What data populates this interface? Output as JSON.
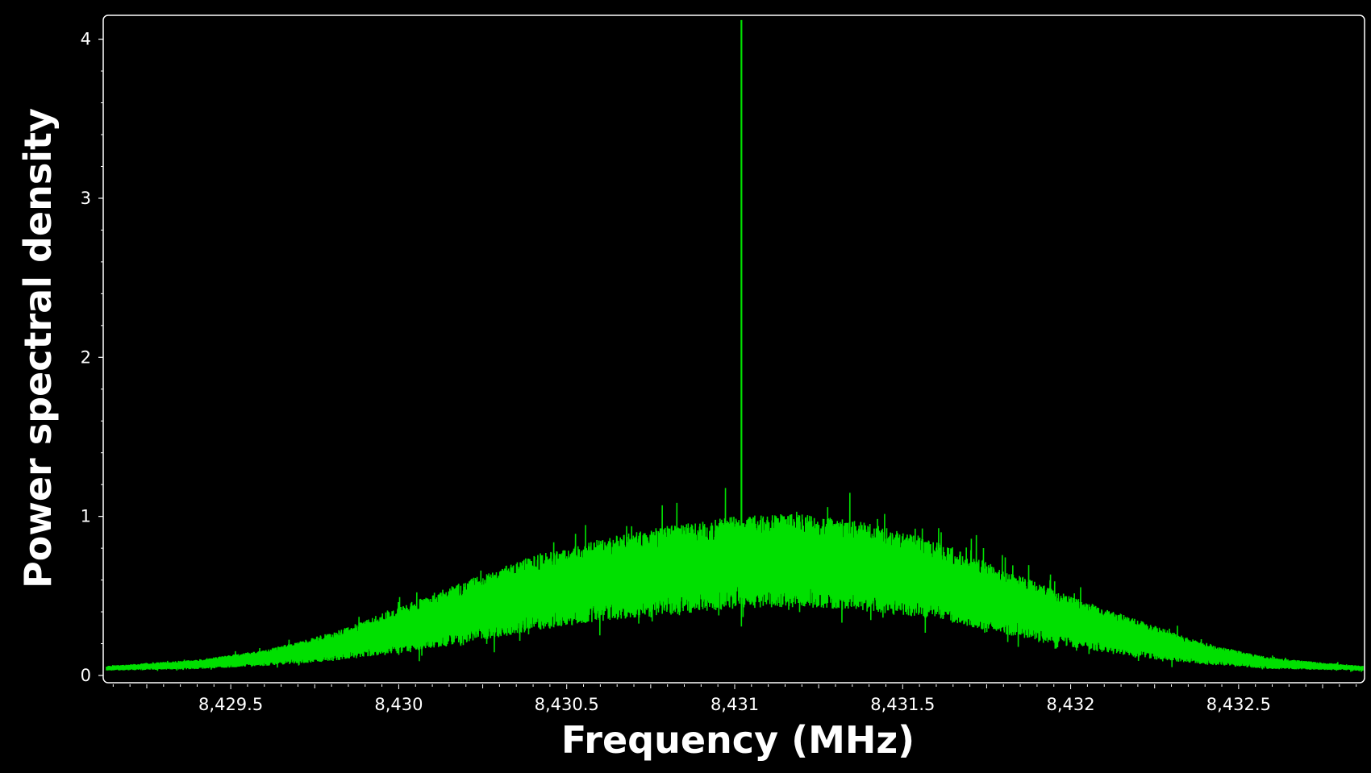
{
  "chart_data": {
    "type": "line",
    "title": "",
    "xlabel": "Frequency (MHz)",
    "ylabel": "Power spectral density",
    "xlim": [
      8429.13,
      8432.87
    ],
    "ylim": [
      0,
      4.15
    ],
    "x_ticks": [
      {
        "value": 8429.5,
        "label": "8,429.5"
      },
      {
        "value": 8430,
        "label": "8,430"
      },
      {
        "value": 8430.5,
        "label": "8,430.5"
      },
      {
        "value": 8431,
        "label": "8,431"
      },
      {
        "value": 8431.5,
        "label": "8,431.5"
      },
      {
        "value": 8432,
        "label": "8,432"
      },
      {
        "value": 8432.5,
        "label": "8,432.5"
      }
    ],
    "y_ticks": [
      {
        "value": 0,
        "label": "0"
      },
      {
        "value": 1,
        "label": "1"
      },
      {
        "value": 2,
        "label": "2"
      },
      {
        "value": 3,
        "label": "3"
      },
      {
        "value": 4,
        "label": "4"
      }
    ],
    "grid": false,
    "legend": "none",
    "colors": {
      "background": "#000000",
      "trace": "#00e000",
      "axis": "#ffffff"
    },
    "series": [
      {
        "x": [
          8429.13,
          8429.4,
          8429.6,
          8429.8,
          8430.0,
          8430.2,
          8430.4,
          8430.6,
          8430.8,
          8431.0,
          8431.02,
          8431.2,
          8431.4,
          8431.6,
          8431.8,
          8432.0,
          8432.2,
          8432.4,
          8432.6,
          8432.87
        ],
        "upper": [
          0.06,
          0.1,
          0.16,
          0.27,
          0.43,
          0.6,
          0.75,
          0.86,
          0.94,
          1.0,
          4.12,
          1.02,
          0.96,
          0.84,
          0.67,
          0.5,
          0.35,
          0.2,
          0.11,
          0.06
        ],
        "lower": [
          0.03,
          0.04,
          0.06,
          0.09,
          0.14,
          0.2,
          0.28,
          0.34,
          0.38,
          0.42,
          0.42,
          0.43,
          0.4,
          0.35,
          0.26,
          0.18,
          0.11,
          0.07,
          0.04,
          0.03
        ]
      }
    ],
    "peak": {
      "x": 8431.02,
      "y": 4.12
    }
  }
}
